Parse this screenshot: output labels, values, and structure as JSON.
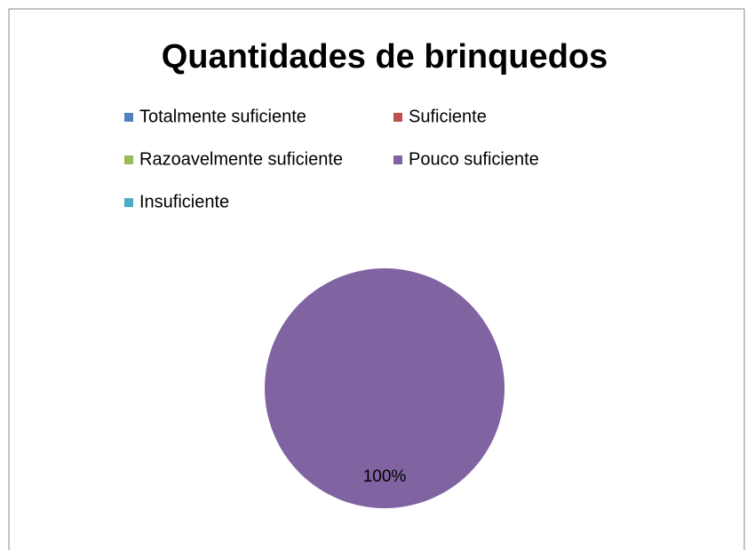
{
  "chart_data": {
    "type": "pie",
    "title": "Quantidades de brinquedos",
    "categories": [
      "Totalmente suficiente",
      "Suficiente",
      "Razoavelmente suficiente",
      "Pouco suficiente",
      "Insuficiente"
    ],
    "values": [
      0,
      0,
      0,
      100,
      0
    ],
    "value_labels": [
      null,
      null,
      null,
      "100%",
      null
    ],
    "colors": [
      "#4f81bd",
      "#c0504d",
      "#9bbb59",
      "#8064a2",
      "#4bacc6"
    ],
    "legend": "top"
  }
}
